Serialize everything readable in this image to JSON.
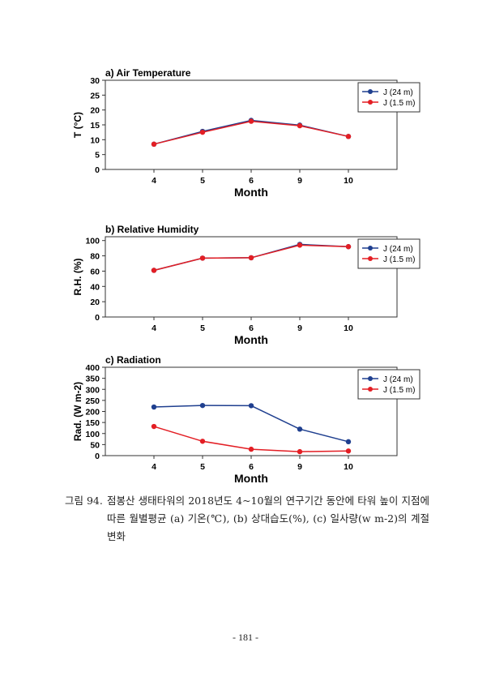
{
  "chart_data": [
    {
      "type": "line",
      "title": "a) Air Temperature",
      "xlabel": "Month",
      "ylabel": "T (°C)",
      "categories": [
        "4",
        "5",
        "6",
        "9",
        "10"
      ],
      "ylim": [
        0,
        30
      ],
      "yticks": [
        0,
        5,
        10,
        15,
        20,
        25,
        30
      ],
      "legend_position": "top-right",
      "series": [
        {
          "name": "J (24 m)",
          "color": "#1f3f8f",
          "values": [
            8.5,
            12.8,
            16.5,
            14.9,
            11.1
          ]
        },
        {
          "name": "J (1.5 m)",
          "color": "#e31e24",
          "values": [
            8.5,
            12.5,
            16.2,
            14.7,
            11.1
          ]
        }
      ]
    },
    {
      "type": "line",
      "title": "b) Relative Humidity",
      "xlabel": "Month",
      "ylabel": "R.H. (%)",
      "categories": [
        "4",
        "5",
        "6",
        "9",
        "10"
      ],
      "ylim": [
        0,
        105
      ],
      "yticks": [
        0,
        20,
        40,
        60,
        80,
        100
      ],
      "legend_position": "top-right",
      "series": [
        {
          "name": "J (24 m)",
          "color": "#1f3f8f",
          "values": [
            61,
            77,
            77.5,
            95,
            92
          ]
        },
        {
          "name": "J (1.5 m)",
          "color": "#e31e24",
          "values": [
            61,
            77,
            77.5,
            94,
            92
          ]
        }
      ]
    },
    {
      "type": "line",
      "title": "c) Radiation",
      "xlabel": "Month",
      "ylabel": "Rad. (W m-2)",
      "categories": [
        "4",
        "5",
        "6",
        "9",
        "10"
      ],
      "ylim": [
        0,
        400
      ],
      "yticks": [
        0,
        50,
        100,
        150,
        200,
        250,
        300,
        350,
        400
      ],
      "legend_position": "top-right",
      "series": [
        {
          "name": "J (24 m)",
          "color": "#1f3f8f",
          "values": [
            220,
            227,
            226,
            120,
            63
          ]
        },
        {
          "name": "J (1.5 m)",
          "color": "#e31e24",
          "values": [
            132,
            65,
            29,
            18,
            21
          ]
        }
      ]
    }
  ],
  "caption": {
    "label": "그림 94.",
    "text": "점봉산 생태타워의 2018년도 4~10월의 연구기간 동안에 타워 높이 지점에 따른 월별평균 (a) 기온(℃), (b) 상대습도(%), (c) 일사량(w m-2)의 계절변화"
  },
  "page_number": "- 181 -"
}
